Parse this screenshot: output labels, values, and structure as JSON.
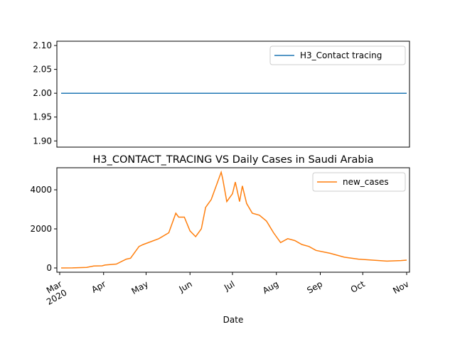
{
  "chart_data": [
    {
      "type": "line",
      "xlim": [
        "2020-02-28",
        "2020-11-03"
      ],
      "ylim": [
        1.887,
        2.109
      ],
      "yticks": [
        {
          "value": 1.9,
          "label": "1.90"
        },
        {
          "value": 1.95,
          "label": "1.95"
        },
        {
          "value": 2.0,
          "label": "2.00"
        },
        {
          "value": 2.05,
          "label": "2.05"
        },
        {
          "value": 2.1,
          "label": "2.10"
        }
      ],
      "legend": "upper right",
      "x": [
        "2020-03-02",
        "2020-11-01"
      ],
      "series": [
        {
          "name": "H3_Contact tracing",
          "color": "#1f77b4",
          "values": [
            2,
            2
          ]
        }
      ]
    },
    {
      "type": "line",
      "title": "H3_CONTACT_TRACING VS Daily Cases in Saudi Arabia",
      "x_label": "Date",
      "xlim": [
        "2020-02-28",
        "2020-11-03"
      ],
      "xticks": [
        {
          "value": "2020-03-01",
          "label": "Mar\n2020"
        },
        {
          "value": "2020-04-01",
          "label": "Apr"
        },
        {
          "value": "2020-05-01",
          "label": "May"
        },
        {
          "value": "2020-06-01",
          "label": "Jun"
        },
        {
          "value": "2020-07-01",
          "label": "Jul"
        },
        {
          "value": "2020-08-01",
          "label": "Aug"
        },
        {
          "value": "2020-09-01",
          "label": "Sep"
        },
        {
          "value": "2020-10-01",
          "label": "Oct"
        },
        {
          "value": "2020-11-01",
          "label": "Nov"
        }
      ],
      "ylim": [
        -218,
        5130
      ],
      "yticks": [
        0,
        2000,
        4000
      ],
      "legend": "upper right",
      "x": [
        "2020-03-02",
        "2020-03-10",
        "2020-03-20",
        "2020-03-25",
        "2020-03-31",
        "2020-04-02",
        "2020-04-10",
        "2020-04-17",
        "2020-04-20",
        "2020-04-26",
        "2020-04-29",
        "2020-05-10",
        "2020-05-17",
        "2020-05-22",
        "2020-05-24",
        "2020-05-28",
        "2020-06-01",
        "2020-06-05",
        "2020-06-09",
        "2020-06-12",
        "2020-06-16",
        "2020-06-18",
        "2020-06-21",
        "2020-06-23",
        "2020-06-24",
        "2020-06-27",
        "2020-07-01",
        "2020-07-03",
        "2020-07-06",
        "2020-07-08",
        "2020-07-11",
        "2020-07-15",
        "2020-07-20",
        "2020-07-25",
        "2020-07-30",
        "2020-08-04",
        "2020-08-09",
        "2020-08-14",
        "2020-08-19",
        "2020-08-24",
        "2020-08-29",
        "2020-09-08",
        "2020-09-18",
        "2020-09-28",
        "2020-10-08",
        "2020-10-18",
        "2020-10-28",
        "2020-11-01"
      ],
      "series": [
        {
          "name": "new_cases",
          "color": "#ff7f0e",
          "values": [
            0,
            5,
            30,
            100,
            110,
            150,
            200,
            450,
            500,
            1100,
            1200,
            1500,
            1800,
            2800,
            2600,
            2600,
            1900,
            1600,
            2000,
            3100,
            3500,
            3900,
            4500,
            4900,
            4600,
            3400,
            3800,
            4400,
            3400,
            4200,
            3300,
            2800,
            2700,
            2400,
            1800,
            1300,
            1500,
            1400,
            1200,
            1100,
            900,
            750,
            550,
            450,
            400,
            350,
            380,
            400
          ]
        }
      ]
    }
  ]
}
